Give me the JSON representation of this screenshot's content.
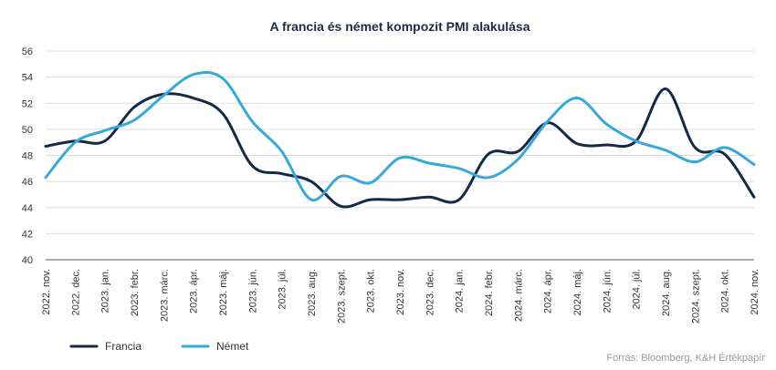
{
  "chart_data": {
    "type": "line",
    "title": "A francia és német kompozit PMI alakulása",
    "xlabel": "",
    "ylabel": "",
    "ylim": [
      40,
      56
    ],
    "yticks": [
      40,
      42,
      44,
      46,
      48,
      50,
      52,
      54,
      56
    ],
    "grid": true,
    "legend_position": "bottom-left",
    "categories": [
      "2022. nov.",
      "2022. dec.",
      "2023. jan.",
      "2023. febr.",
      "2023. márc.",
      "2023. ápr.",
      "2023. máj.",
      "2023. jún.",
      "2023. júl.",
      "2023. aug.",
      "2023. szept.",
      "2023. okt.",
      "2023. nov.",
      "2023. dec.",
      "2024. jan.",
      "2024. febr.",
      "2024. márc.",
      "2024. ápr.",
      "2024. máj.",
      "2024. jún.",
      "2024. júl.",
      "2024. aug.",
      "2024. szept.",
      "2024. okt.",
      "2024. nov."
    ],
    "series": [
      {
        "name": "Francia",
        "color": "#13294b",
        "values": [
          48.7,
          49.1,
          49.1,
          51.7,
          52.7,
          52.4,
          51.2,
          47.2,
          46.6,
          46.0,
          44.1,
          44.6,
          44.6,
          44.8,
          44.6,
          48.1,
          48.3,
          50.5,
          48.9,
          48.8,
          49.1,
          53.1,
          48.6,
          48.1,
          44.8
        ]
      },
      {
        "name": "Német",
        "color": "#35a8dc",
        "values": [
          46.3,
          49.0,
          49.9,
          50.7,
          52.6,
          54.2,
          53.9,
          50.6,
          48.3,
          44.6,
          46.4,
          45.9,
          47.8,
          47.4,
          47.0,
          46.3,
          47.7,
          50.6,
          52.4,
          50.4,
          49.1,
          48.4,
          47.5,
          48.6,
          47.3
        ]
      }
    ]
  },
  "source_note": "Forrás: Bloomberg, K&H Értékpapír"
}
